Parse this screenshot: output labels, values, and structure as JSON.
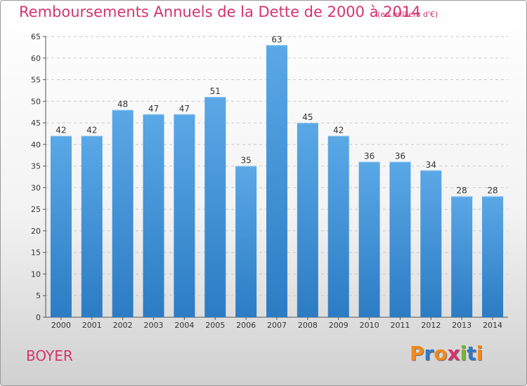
{
  "header": {
    "title": "Remboursements Annuels de la Dette de 2000 à 2014",
    "unit": "(en milliers d'€)"
  },
  "footer": {
    "commune": "BOYER",
    "logo_text": "Proxiti"
  },
  "colors": {
    "title": "#d6336c",
    "bar_top": "#5aa8e6",
    "bar_bottom": "#2c7cc4",
    "logo_letters": [
      "#f08a1c",
      "#2f78c9",
      "#f08a1c",
      "#d6336c",
      "#7ab335",
      "#2f78c9",
      "#f08a1c"
    ]
  },
  "chart_data": {
    "type": "bar",
    "categories": [
      "2000",
      "2001",
      "2002",
      "2003",
      "2004",
      "2005",
      "2006",
      "2007",
      "2008",
      "2009",
      "2010",
      "2011",
      "2012",
      "2013",
      "2014"
    ],
    "values": [
      42,
      42,
      48,
      47,
      47,
      51,
      35,
      63,
      45,
      42,
      36,
      36,
      34,
      28,
      28
    ],
    "title": "Remboursements Annuels de la Dette de 2000 à 2014",
    "unit_label": "(en milliers d'€)",
    "xlabel": "",
    "ylabel": "",
    "ylim": [
      0,
      65
    ],
    "yticks": [
      0,
      5,
      10,
      15,
      20,
      25,
      30,
      35,
      40,
      45,
      50,
      55,
      60,
      65
    ],
    "grid": true,
    "data_labels": true
  }
}
